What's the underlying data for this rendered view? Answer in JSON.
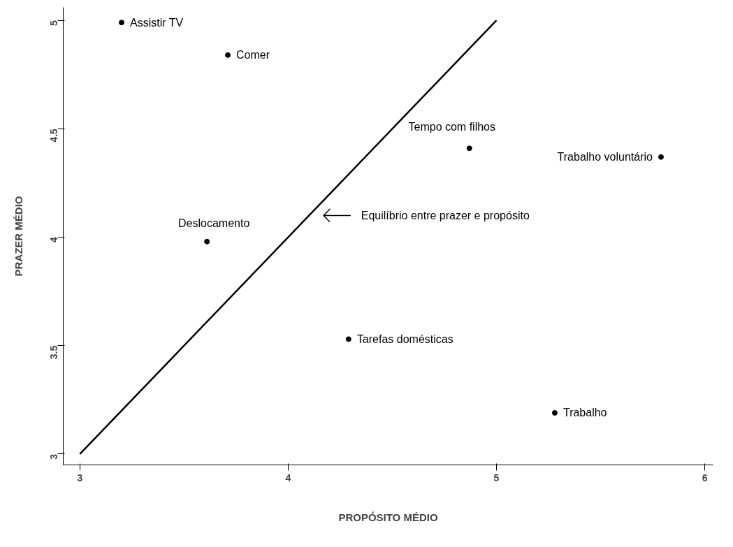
{
  "chart_data": {
    "type": "scatter",
    "xlabel": "PROPÓSITO MÉDIO",
    "ylabel": "PRAZER MÉDIO",
    "xlim": [
      2.92,
      6.04
    ],
    "ylim": [
      2.95,
      5.06
    ],
    "xticks": [
      3,
      4,
      5,
      6
    ],
    "yticks": [
      3,
      3.5,
      4,
      4.5,
      5
    ],
    "grid": false,
    "series": [
      {
        "marker": "circle",
        "color": "#000000",
        "x": [
          3.2,
          3.71,
          4.87,
          5.79,
          3.61,
          4.29,
          5.28
        ],
        "values": [
          4.99,
          4.84,
          4.41,
          4.37,
          3.98,
          3.53,
          3.19
        ]
      },
      {
        "type": "line",
        "color": "#000000",
        "x": [
          3,
          5
        ],
        "values": [
          3,
          5
        ],
        "line_style": "solid"
      }
    ],
    "annotations": [
      {
        "text": "Assistir TV",
        "x": 3.2,
        "y": 4.99
      },
      {
        "text": "Comer",
        "x": 3.71,
        "y": 4.84
      },
      {
        "text": "Tempo com filhos",
        "x": 4.87,
        "y": 4.41
      },
      {
        "text": "Trabalho voluntário",
        "x": 5.79,
        "y": 4.37
      },
      {
        "text": "Deslocamento",
        "x": 3.61,
        "y": 3.98
      },
      {
        "text": "Tarefas domésticas",
        "x": 4.29,
        "y": 3.53
      },
      {
        "text": "Trabalho",
        "x": 5.28,
        "y": 3.19
      },
      "Equilíbrio entre prazer e propósito"
    ]
  }
}
